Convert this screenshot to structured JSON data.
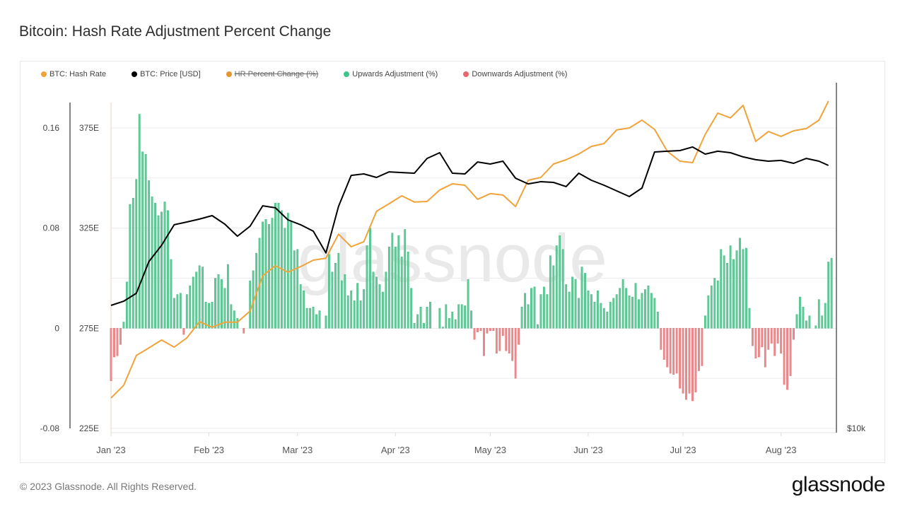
{
  "title": "Bitcoin: Hash Rate Adjustment Percent Change",
  "legend": [
    {
      "label": "BTC: Hash Rate",
      "color": "#f0a33a",
      "hidden": false
    },
    {
      "label": "BTC: Price [USD]",
      "color": "#000000",
      "hidden": false
    },
    {
      "label": "HR Percent Change (%)",
      "color": "#e8952f",
      "hidden": true
    },
    {
      "label": "Upwards Adjustment (%)",
      "color": "#3cc48a",
      "hidden": false
    },
    {
      "label": "Downwards Adjustment (%)",
      "color": "#e8676b",
      "hidden": false
    }
  ],
  "footer": "© 2023 Glassnode. All Rights Reserved.",
  "logo": "glassnode",
  "watermark": "glassnode",
  "chart_data": {
    "type": "bar+line",
    "xlim": [
      "2023-01-01",
      "2023-08-17"
    ],
    "x_ticks": [
      {
        "label": "Jan '23",
        "date": "2023-01-01"
      },
      {
        "label": "Feb '23",
        "date": "2023-02-01"
      },
      {
        "label": "Mar '23",
        "date": "2023-03-01"
      },
      {
        "label": "Apr '23",
        "date": "2023-04-01"
      },
      {
        "label": "May '23",
        "date": "2023-05-01"
      },
      {
        "label": "Jun '23",
        "date": "2023-06-01"
      },
      {
        "label": "Jul '23",
        "date": "2023-07-01"
      },
      {
        "label": "Aug '23",
        "date": "2023-08-01"
      }
    ],
    "percent_axis": {
      "position": "left-outer",
      "ylim": [
        -0.08,
        0.16
      ],
      "ticks": [
        {
          "label": "0.16",
          "value": 0.16
        },
        {
          "label": "0.08",
          "value": 0.08
        },
        {
          "label": "0",
          "value": 0
        },
        {
          "label": "-0.08",
          "value": -0.08
        }
      ]
    },
    "hashrate_axis": {
      "position": "left-inner",
      "unit": "EH/s",
      "ylim": [
        225,
        375
      ],
      "ticks": [
        {
          "label": "375E",
          "value": 375
        },
        {
          "label": "325E",
          "value": 325
        },
        {
          "label": "275E",
          "value": 275
        },
        {
          "label": "225E",
          "value": 225
        }
      ]
    },
    "price_axis": {
      "position": "right",
      "scale": "log",
      "ticks": [
        {
          "label": "$10k",
          "value": 10000
        }
      ]
    },
    "grid": true,
    "adjustment_bars_daily_by_month": {
      "2023-01": [
        -0.042,
        -0.023,
        -0.022,
        -0.013,
        0.005,
        0.037,
        0.099,
        0.104,
        0.119,
        0.171,
        0.141,
        0.139,
        0.118,
        0.105,
        0.1,
        0.09,
        0.093,
        0.101,
        0.094,
        0.055,
        0.024,
        0.027,
        0.028,
        -0.005,
        0.027,
        0.034,
        0.041,
        0.045,
        0.05,
        0.049,
        0.021
      ],
      "2023-02": [
        0.02,
        0.021,
        0.04,
        0.043,
        0.039,
        0.032,
        0.051,
        0.019,
        0.014,
        0.008,
        0,
        -0.004,
        0,
        0.038,
        0.046,
        0.06,
        0.072,
        0.085,
        0.087,
        0.083,
        0.088,
        0.1,
        0.1,
        0.094,
        0.08,
        0.092,
        0.085,
        0.062
      ],
      "2023-03": [
        0.063,
        0.035,
        0.03,
        0.016,
        0.016,
        0.017,
        0.011,
        0.014,
        0,
        0.01,
        0.059,
        0.045,
        0.052,
        0.06,
        0.038,
        0.043,
        0.026,
        0.03,
        0.022,
        0.036,
        0.022,
        0.031,
        0.066,
        0.08,
        0.045,
        0.041,
        0.035,
        0.029,
        0.045,
        0.065,
        0.076
      ],
      "2023-04": [
        0.065,
        0.074,
        0.057,
        0.079,
        0.061,
        0.032,
        0.004,
        0.011,
        0.017,
        0.004,
        0.017,
        0.021,
        0,
        0,
        0.016,
        0.001,
        0.019,
        0.008,
        0.013,
        0.007,
        0.019,
        0.019,
        0.018,
        0.039,
        0.014,
        -0.009,
        -0.003,
        -0.002,
        -0.022,
        -0.004
      ],
      "2023-05": [
        -0.002,
        -0.002,
        -0.02,
        -0.018,
        -0.006,
        -0.018,
        -0.02,
        -0.026,
        -0.04,
        -0.013,
        0.017,
        0.028,
        0.019,
        0.032,
        0.033,
        0.003,
        0.027,
        0.033,
        0.027,
        0.058,
        0.05,
        0.066,
        0.074,
        0.063,
        0.035,
        0.029,
        0.041,
        0.039,
        0.024,
        0.049,
        0.044
      ],
      "2023-06": [
        0.03,
        0.027,
        0.021,
        0.03,
        0.02,
        0.016,
        0.013,
        0.021,
        0.024,
        0.027,
        0.032,
        0.039,
        0.032,
        0.026,
        0.025,
        0.036,
        0.023,
        0.028,
        0.031,
        0.034,
        0.028,
        0.024,
        0.013,
        -0.017,
        -0.025,
        -0.031,
        -0.036,
        -0.037,
        -0.036,
        -0.048
      ],
      "2023-07": [
        -0.052,
        -0.057,
        -0.052,
        -0.058,
        -0.051,
        -0.034,
        -0.03,
        0.01,
        0.026,
        0.034,
        0.04,
        0.038,
        0.063,
        0.058,
        0.052,
        0.066,
        0.055,
        0.062,
        0.072,
        0.063,
        0.064,
        0.016,
        -0.014,
        -0.024,
        -0.023,
        -0.015,
        -0.031,
        -0.017,
        -0.012,
        -0.022,
        -0.012
      ],
      "2023-08": [
        -0.02,
        -0.045,
        -0.049,
        -0.038,
        -0.009,
        0.011,
        0.025,
        0.017,
        0.006,
        0.01,
        0,
        0.002,
        0.023,
        0.01,
        0.02,
        0.053,
        0.056
      ]
    },
    "series": [
      {
        "name": "BTC: Hash Rate",
        "color": "#f0a33a",
        "points": [
          [
            "2023-01-01",
            240.2
          ],
          [
            "2023-01-05",
            246.5
          ],
          [
            "2023-01-09",
            261.4
          ],
          [
            "2023-01-13",
            265.2
          ],
          [
            "2023-01-17",
            269.1
          ],
          [
            "2023-01-21",
            265.6
          ],
          [
            "2023-01-25",
            270.2
          ],
          [
            "2023-01-29",
            278.3
          ],
          [
            "2023-02-02",
            275.5
          ],
          [
            "2023-02-06",
            278
          ],
          [
            "2023-02-10",
            278
          ],
          [
            "2023-02-14",
            283.6
          ],
          [
            "2023-02-18",
            301.2
          ],
          [
            "2023-02-22",
            306.2
          ],
          [
            "2023-02-26",
            303
          ],
          [
            "2023-03-02",
            305.8
          ],
          [
            "2023-03-06",
            309
          ],
          [
            "2023-03-10",
            310
          ],
          [
            "2023-03-14",
            322
          ],
          [
            "2023-03-18",
            315.7
          ],
          [
            "2023-03-22",
            318.2
          ],
          [
            "2023-03-26",
            333.4
          ],
          [
            "2023-03-30",
            337.2
          ],
          [
            "2023-04-03",
            341.1
          ],
          [
            "2023-04-07",
            338
          ],
          [
            "2023-04-11",
            338.3
          ],
          [
            "2023-04-15",
            344
          ],
          [
            "2023-04-19",
            347.1
          ],
          [
            "2023-04-23",
            346.4
          ],
          [
            "2023-04-27",
            339.4
          ],
          [
            "2023-05-01",
            342.2
          ],
          [
            "2023-05-05",
            341.5
          ],
          [
            "2023-05-09",
            335.8
          ],
          [
            "2023-05-13",
            348.9
          ],
          [
            "2023-05-17",
            350.3
          ],
          [
            "2023-05-21",
            357
          ],
          [
            "2023-05-25",
            359.1
          ],
          [
            "2023-05-29",
            362
          ],
          [
            "2023-06-02",
            365.8
          ],
          [
            "2023-06-06",
            367.2
          ],
          [
            "2023-06-10",
            374
          ],
          [
            "2023-06-14",
            375
          ],
          [
            "2023-06-18",
            378.9
          ],
          [
            "2023-06-22",
            374.3
          ],
          [
            "2023-06-26",
            363.4
          ],
          [
            "2023-06-30",
            358.4
          ],
          [
            "2023-07-04",
            357.7
          ],
          [
            "2023-07-08",
            371.8
          ],
          [
            "2023-07-12",
            382.4
          ],
          [
            "2023-07-16",
            380
          ],
          [
            "2023-07-20",
            386.3
          ],
          [
            "2023-07-24",
            368.3
          ],
          [
            "2023-07-28",
            373.2
          ],
          [
            "2023-08-01",
            370.8
          ],
          [
            "2023-08-05",
            373.6
          ],
          [
            "2023-08-09",
            374.7
          ],
          [
            "2023-08-13",
            378.9
          ],
          [
            "2023-08-16",
            388.4
          ]
        ]
      },
      {
        "name": "BTC: Price [USD]",
        "color": "#000000",
        "points": [
          [
            "2023-01-01",
            16280
          ],
          [
            "2023-01-05",
            16550
          ],
          [
            "2023-01-09",
            17080
          ],
          [
            "2023-01-13",
            19370
          ],
          [
            "2023-01-17",
            20660
          ],
          [
            "2023-01-21",
            22410
          ],
          [
            "2023-01-25",
            22660
          ],
          [
            "2023-01-29",
            22920
          ],
          [
            "2023-02-02",
            23240
          ],
          [
            "2023-02-06",
            22470
          ],
          [
            "2023-02-10",
            21420
          ],
          [
            "2023-02-14",
            22280
          ],
          [
            "2023-02-18",
            24160
          ],
          [
            "2023-02-22",
            23970
          ],
          [
            "2023-02-26",
            22850
          ],
          [
            "2023-03-02",
            22410
          ],
          [
            "2023-03-06",
            21850
          ],
          [
            "2023-03-10",
            20040
          ],
          [
            "2023-03-14",
            24100
          ],
          [
            "2023-03-18",
            27250
          ],
          [
            "2023-03-22",
            27410
          ],
          [
            "2023-03-26",
            27030
          ],
          [
            "2023-03-30",
            27640
          ],
          [
            "2023-04-03",
            27560
          ],
          [
            "2023-04-07",
            27490
          ],
          [
            "2023-04-11",
            29150
          ],
          [
            "2023-04-15",
            29820
          ],
          [
            "2023-04-19",
            27490
          ],
          [
            "2023-04-23",
            27410
          ],
          [
            "2023-04-27",
            28740
          ],
          [
            "2023-05-01",
            28510
          ],
          [
            "2023-05-05",
            28830
          ],
          [
            "2023-05-09",
            26950
          ],
          [
            "2023-05-13",
            26350
          ],
          [
            "2023-05-17",
            26580
          ],
          [
            "2023-05-21",
            26510
          ],
          [
            "2023-05-25",
            26070
          ],
          [
            "2023-05-29",
            27490
          ],
          [
            "2023-06-02",
            26730
          ],
          [
            "2023-06-06",
            26210
          ],
          [
            "2023-06-10",
            25630
          ],
          [
            "2023-06-14",
            25060
          ],
          [
            "2023-06-18",
            25920
          ],
          [
            "2023-06-22",
            29900
          ],
          [
            "2023-06-26",
            29990
          ],
          [
            "2023-06-30",
            30070
          ],
          [
            "2023-07-04",
            30500
          ],
          [
            "2023-07-08",
            29650
          ],
          [
            "2023-07-12",
            29990
          ],
          [
            "2023-07-16",
            29820
          ],
          [
            "2023-07-20",
            29330
          ],
          [
            "2023-07-24",
            29000
          ],
          [
            "2023-07-28",
            28830
          ],
          [
            "2023-08-01",
            28920
          ],
          [
            "2023-08-05",
            28590
          ],
          [
            "2023-08-09",
            29150
          ],
          [
            "2023-08-13",
            28830
          ],
          [
            "2023-08-16",
            28350
          ]
        ]
      }
    ]
  }
}
